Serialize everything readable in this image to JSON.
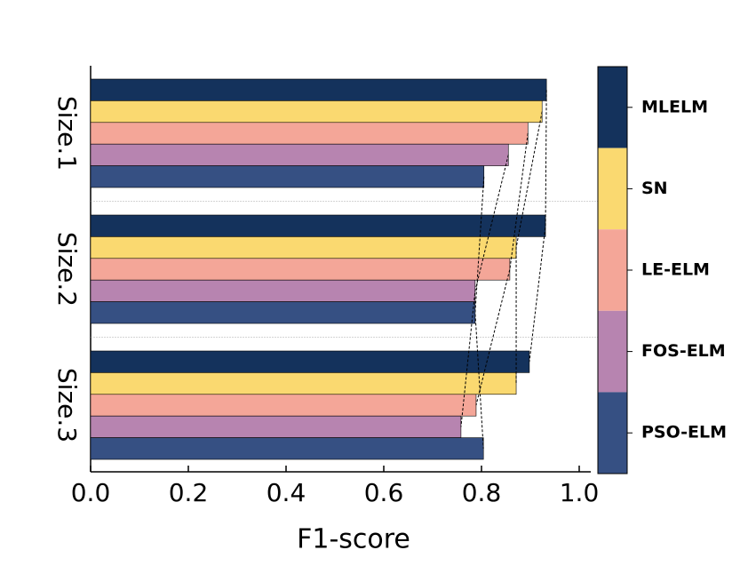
{
  "chart_data": {
    "type": "bar",
    "orientation": "horizontal",
    "xlabel": "F1-score",
    "categories": [
      "Size.1",
      "Size.2",
      "Size.3"
    ],
    "series": [
      {
        "name": "MLELM",
        "color": "#14325c",
        "values": [
          0.933,
          0.931,
          0.898
        ]
      },
      {
        "name": "SN",
        "color": "#fad970",
        "values": [
          0.924,
          0.871,
          0.871
        ]
      },
      {
        "name": "LE-ELM",
        "color": "#f4a698",
        "values": [
          0.895,
          0.858,
          0.789
        ]
      },
      {
        "name": "FOS-ELM",
        "color": "#b784b0",
        "values": [
          0.855,
          0.787,
          0.758
        ]
      },
      {
        "name": "PSO-ELM",
        "color": "#365083",
        "values": [
          0.805,
          0.787,
          0.804
        ]
      }
    ],
    "xlim": [
      0,
      1.02
    ],
    "xticks": [
      {
        "value": 0,
        "label": "0.0"
      },
      {
        "value": 0.2,
        "label": "0.2"
      },
      {
        "value": 0.4,
        "label": "0.4"
      },
      {
        "value": 0.6,
        "label": "0.6"
      },
      {
        "value": 0.8,
        "label": "0.8"
      },
      {
        "value": 1,
        "label": "1.0"
      }
    ],
    "connect_lines": true,
    "legend": "colorbar-right"
  }
}
